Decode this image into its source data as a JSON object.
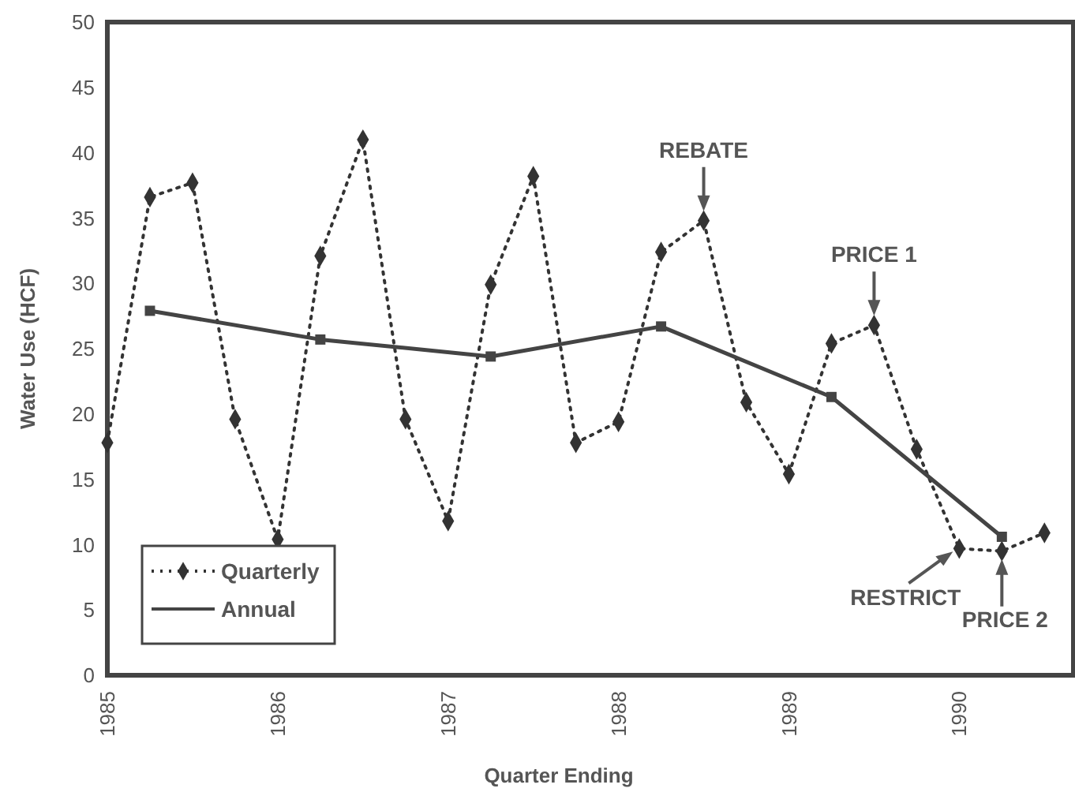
{
  "chart_data": {
    "type": "line",
    "xlabel": "Quarter Ending",
    "ylabel": "Water Use (HCF)",
    "xlim": [
      1985,
      1990.67
    ],
    "xticks": [
      1985,
      1986,
      1987,
      1988,
      1989,
      1990
    ],
    "ylim": [
      0,
      50
    ],
    "yticks": [
      0,
      5,
      10,
      15,
      20,
      25,
      30,
      35,
      40,
      45,
      50
    ],
    "grid": false,
    "legend": "bottom left",
    "series": [
      {
        "name": "Quarterly",
        "color": "#333333",
        "marker": "diamond",
        "line_style": "dotted",
        "x": [
          1985,
          1985.25,
          1985.5,
          1985.75,
          1986,
          1986.25,
          1986.5,
          1986.75,
          1987,
          1987.25,
          1987.5,
          1987.75,
          1988,
          1988.25,
          1988.5,
          1988.75,
          1989,
          1989.25,
          1989.5,
          1989.75,
          1990,
          1990.25,
          1990.5
        ],
        "values": [
          17.8,
          36.6,
          37.7,
          19.6,
          10.4,
          32.1,
          41,
          19.6,
          11.8,
          29.9,
          38.2,
          17.8,
          19.4,
          32.4,
          34.8,
          20.9,
          15.4,
          25.4,
          26.8,
          17.3,
          9.7,
          9.5,
          10.9
        ]
      },
      {
        "name": "Annual",
        "color": "#444444",
        "marker": "square",
        "line_style": "solid",
        "x": [
          1985.25,
          1986.25,
          1987.25,
          1988.25,
          1989.25,
          1990.25
        ],
        "values": [
          27.9,
          25.7,
          24.4,
          26.7,
          21.3,
          10.6
        ]
      }
    ],
    "annotations": [
      {
        "text": "REBATE",
        "x": 1988.5,
        "y": 34.8
      },
      {
        "text": "PRICE 1",
        "x": 1989.5,
        "y": 26.8
      },
      {
        "text": "RESTRICT",
        "x": 1990,
        "y": 9.7
      },
      {
        "text": "PRICE 2",
        "x": 1990.25,
        "y": 9.5
      }
    ]
  }
}
